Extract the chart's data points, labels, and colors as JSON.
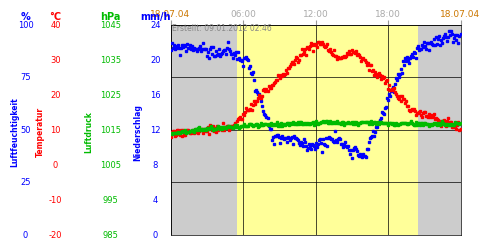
{
  "created": "Erstellt: 09.01.2012 02:46",
  "color_humidity": "#0000ff",
  "color_temp": "#ff0000",
  "color_pressure": "#00bb00",
  "color_rain": "#0000cc",
  "bg_day": "#ffff99",
  "bg_night": "#cccccc",
  "day_start": 5.5,
  "day_end": 20.5,
  "units_humidity": "%",
  "units_temp": "°C",
  "units_pressure": "hPa",
  "units_rain": "mm/h",
  "ylabel_left1": "Luftfeuchtigkeit",
  "ylabel_left2": "Temperatur",
  "ylabel_left3": "Luftdruck",
  "ylabel_left4": "Niederschlag",
  "hum_ticks": [
    0,
    25,
    50,
    75,
    100
  ],
  "temp_ticks": [
    -20,
    -10,
    0,
    10,
    20,
    30,
    40
  ],
  "pres_ticks": [
    985,
    995,
    1005,
    1015,
    1025,
    1035,
    1045
  ],
  "rain_ticks": [
    0,
    4,
    8,
    12,
    16,
    20,
    24
  ],
  "xtick_labels": [
    "18.07.04",
    "06:00",
    "12:00",
    "18:00",
    "18.07.04"
  ]
}
